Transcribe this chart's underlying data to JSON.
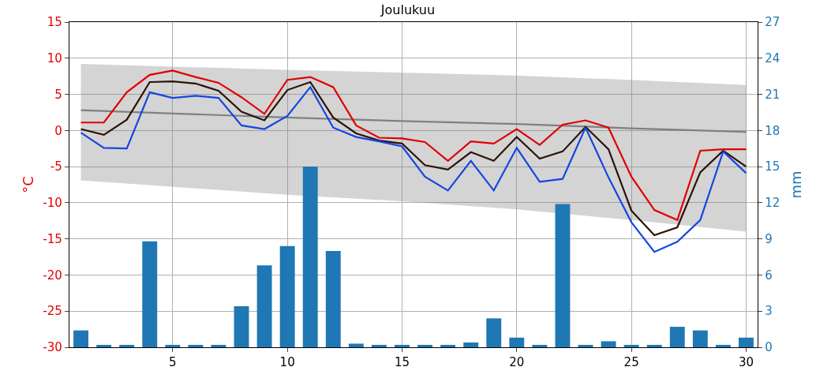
{
  "chart_data": {
    "type": "line",
    "title": "Joulukuu",
    "ylabel": "°C",
    "y2label": "mm",
    "x": [
      1,
      2,
      3,
      4,
      5,
      6,
      7,
      8,
      9,
      10,
      11,
      12,
      13,
      14,
      15,
      16,
      17,
      18,
      19,
      20,
      21,
      22,
      23,
      24,
      25,
      26,
      27,
      28,
      29,
      30
    ],
    "series": [
      {
        "color": "#808080",
        "x": [
          1,
          10,
          15,
          20,
          25,
          30
        ],
        "values": [
          2.8,
          1.8,
          1.3,
          0.9,
          0.3,
          -0.2
        ],
        "lower": [
          -6.9,
          -8.9,
          -9.8,
          -10.9,
          -12.4,
          -14.0
        ],
        "upper": [
          9.2,
          8.4,
          8.0,
          7.6,
          7.0,
          6.3
        ]
      },
      {
        "type": "bar",
        "axis": "y2",
        "color": "#1f77b4",
        "values": [
          1.4,
          0.2,
          0.2,
          8.8,
          0.2,
          0.2,
          0.2,
          3.4,
          6.8,
          8.4,
          15.0,
          8.0,
          0.3,
          0.2,
          0.2,
          0.2,
          0.2,
          0.4,
          2.4,
          0.8,
          0.2,
          11.9,
          0.2,
          0.5,
          0.2,
          0.2,
          1.7,
          1.4,
          0.2,
          0.8
        ]
      },
      {
        "color": "#e00000",
        "values": [
          1.1,
          1.1,
          5.3,
          7.7,
          8.3,
          7.4,
          6.6,
          4.6,
          2.3,
          7.0,
          7.4,
          6.0,
          0.7,
          -1.0,
          -1.1,
          -1.6,
          -4.2,
          -1.5,
          -1.8,
          0.2,
          -2.0,
          0.8,
          1.4,
          0.4,
          -6.4,
          -11.0,
          -12.4,
          -2.8,
          -2.6,
          -2.6
        ]
      },
      {
        "color": "#2b1306",
        "values": [
          0.2,
          -0.6,
          1.5,
          6.7,
          6.8,
          6.5,
          5.5,
          2.6,
          1.4,
          5.6,
          6.7,
          1.8,
          -0.4,
          -1.4,
          -1.8,
          -4.8,
          -5.4,
          -3.0,
          -4.2,
          -0.9,
          -3.9,
          -2.9,
          0.5,
          -2.6,
          -11.1,
          -14.5,
          -13.4,
          -5.8,
          -2.8,
          -5.0
        ]
      },
      {
        "color": "#1446e0",
        "values": [
          -0.3,
          -2.4,
          -2.5,
          5.3,
          4.5,
          4.8,
          4.5,
          0.7,
          0.2,
          2.0,
          6.0,
          0.4,
          -0.9,
          -1.5,
          -2.2,
          -6.4,
          -8.3,
          -4.2,
          -8.3,
          -2.4,
          -7.1,
          -6.7,
          0.4,
          -6.5,
          -12.7,
          -16.8,
          -15.4,
          -12.4,
          -2.9,
          -5.9
        ]
      }
    ],
    "xlim": [
      0.5,
      30.5
    ],
    "xticks": [
      5,
      10,
      15,
      20,
      25,
      30
    ],
    "ylim": [
      -30,
      15
    ],
    "yticks": [
      -30,
      -25,
      -20,
      -15,
      -10,
      -5,
      0,
      5,
      10,
      15
    ],
    "y2lim": [
      0,
      27
    ],
    "y2ticks": [
      0,
      3,
      6,
      9,
      12,
      15,
      18,
      21,
      24,
      27
    ],
    "grid": true,
    "marker": "none",
    "line_style": "solid"
  }
}
